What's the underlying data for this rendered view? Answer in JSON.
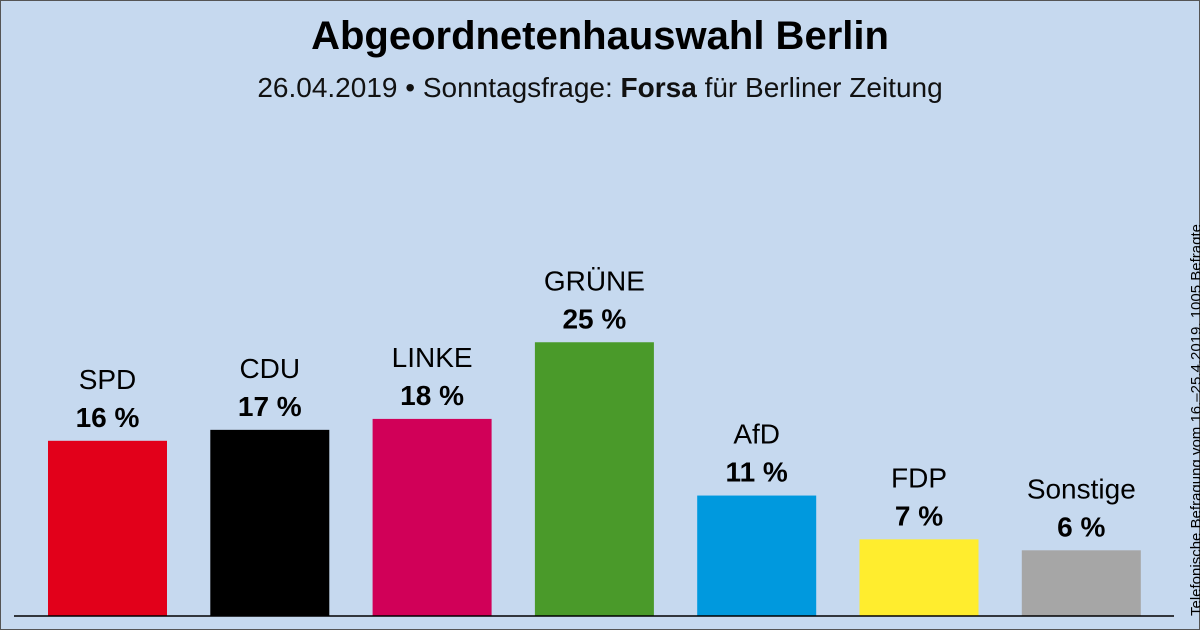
{
  "chart_data": {
    "type": "bar",
    "title": "Abgeordnetenhauswahl Berlin",
    "subtitle": {
      "prefix": "26.04.2019 • Sonntagsfrage:",
      "institute": "Forsa",
      "suffix": "für Berliner Zeitung"
    },
    "categories": [
      "SPD",
      "CDU",
      "LINKE",
      "GRÜNE",
      "AfD",
      "FDP",
      "Sonstige"
    ],
    "values": [
      16,
      17,
      18,
      25,
      11,
      7,
      6
    ],
    "value_labels": [
      "16 %",
      "17 %",
      "18 %",
      "25 %",
      "11 %",
      "7 %",
      "6 %"
    ],
    "colors": [
      "#e2001a",
      "#000000",
      "#d10058",
      "#4a9a2a",
      "#0099de",
      "#ffed2e",
      "#a6a6a6"
    ],
    "ylim": [
      0,
      25
    ],
    "grid": false,
    "legend": "none",
    "note": "Telefonische Befragung vom 16.–25.4.2019, 1005 Befragte"
  }
}
